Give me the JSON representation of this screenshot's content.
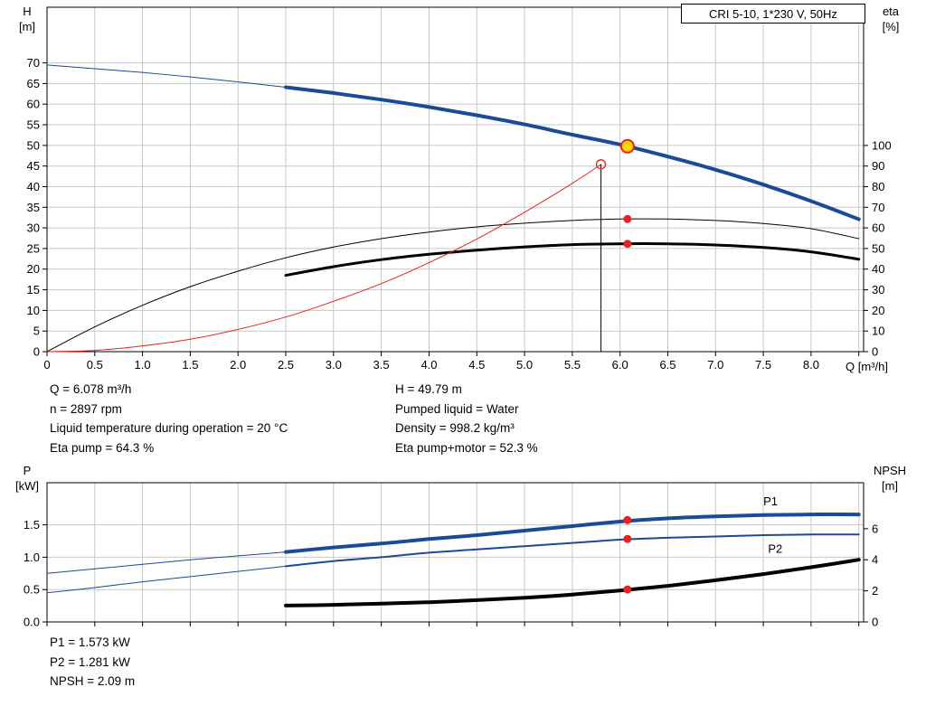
{
  "colors": {
    "blue": "#1b4a97",
    "black": "#000000",
    "red": "#e8231e",
    "yellow": "#ffd800",
    "grid": "#c8c8c8",
    "frame": "#000000"
  },
  "info_top": {
    "left": [
      "Q = 6.078 m³/h",
      "n = 2897 rpm",
      "Liquid temperature during operation = 20 °C",
      "Eta pump = 64.3 %"
    ],
    "right": [
      "H = 49.79 m",
      "Pumped liquid = Water",
      "Density = 998.2 kg/m³",
      "Eta pump+motor = 52.3 %"
    ]
  },
  "info_bottom": [
    "P1 = 1.573 kW",
    "P2 = 1.281 kW",
    "NPSH = 2.09 m"
  ],
  "chart_data": [
    {
      "type": "line",
      "name": "qh-eta-chart",
      "title": "CRI 5-10, 1*230 V, 50Hz",
      "x_axis": {
        "label": "Q [m³/h]",
        "min": 0,
        "max": 8.55,
        "grid_step": 0.5,
        "ticks": [
          [
            0,
            "0"
          ],
          [
            0.5,
            "0.5"
          ],
          [
            1,
            "1.0"
          ],
          [
            1.5,
            "1.5"
          ],
          [
            2,
            "2.0"
          ],
          [
            2.5,
            "2.5"
          ],
          [
            3,
            "3.0"
          ],
          [
            3.5,
            "3.5"
          ],
          [
            4,
            "4.0"
          ],
          [
            4.5,
            "4.5"
          ],
          [
            5,
            "5.0"
          ],
          [
            5.5,
            "5.5"
          ],
          [
            6,
            "6.0"
          ],
          [
            6.5,
            "6.5"
          ],
          [
            7,
            "7.0"
          ],
          [
            7.5,
            "7.5"
          ],
          [
            8,
            "8.0"
          ]
        ]
      },
      "y_left": {
        "label": "H",
        "unit": "[m]",
        "min": 0,
        "max": 83.5,
        "ticks": [
          [
            0,
            "0"
          ],
          [
            5,
            "5"
          ],
          [
            10,
            "10"
          ],
          [
            15,
            "15"
          ],
          [
            20,
            "20"
          ],
          [
            25,
            "25"
          ],
          [
            30,
            "30"
          ],
          [
            35,
            "35"
          ],
          [
            40,
            "40"
          ],
          [
            45,
            "45"
          ],
          [
            50,
            "50"
          ],
          [
            55,
            "55"
          ],
          [
            60,
            "60"
          ],
          [
            65,
            "65"
          ],
          [
            70,
            "70"
          ]
        ]
      },
      "y_right": {
        "label": "eta",
        "unit": "[%]",
        "left_units_per_right_unit": 0.5,
        "ticks": [
          [
            0,
            "0"
          ],
          [
            10,
            "10"
          ],
          [
            20,
            "20"
          ],
          [
            30,
            "30"
          ],
          [
            40,
            "40"
          ],
          [
            50,
            "50"
          ],
          [
            60,
            "60"
          ],
          [
            70,
            "70"
          ],
          [
            80,
            "80"
          ],
          [
            90,
            "90"
          ],
          [
            100,
            "100"
          ]
        ]
      },
      "series": [
        {
          "name": "qh-curve-low-flow",
          "color": "blue",
          "width": 1,
          "axis": "left",
          "points": [
            [
              0,
              69.5
            ],
            [
              0.5,
              68.6
            ],
            [
              1,
              67.7
            ],
            [
              1.5,
              66.6
            ],
            [
              2,
              65.4
            ],
            [
              2.5,
              64.1
            ]
          ]
        },
        {
          "name": "qh-curve",
          "color": "blue",
          "width": 4,
          "axis": "left",
          "points": [
            [
              2.5,
              64.1
            ],
            [
              3,
              62.7
            ],
            [
              3.5,
              61.1
            ],
            [
              4,
              59.3
            ],
            [
              4.5,
              57.3
            ],
            [
              5,
              55.1
            ],
            [
              5.5,
              52.6
            ],
            [
              6,
              50.2
            ],
            [
              6.5,
              47.3
            ],
            [
              7,
              44.1
            ],
            [
              7.5,
              40.5
            ],
            [
              8,
              36.5
            ],
            [
              8.5,
              32.1
            ]
          ]
        },
        {
          "name": "eta-pump-curve",
          "color": "black",
          "width": 1,
          "axis": "right",
          "points": [
            [
              0,
              0
            ],
            [
              0.5,
              12
            ],
            [
              1,
              22.5
            ],
            [
              1.5,
              31.5
            ],
            [
              2,
              39
            ],
            [
              2.5,
              45.5
            ],
            [
              3,
              50.7
            ],
            [
              3.5,
              54.8
            ],
            [
              4,
              58
            ],
            [
              4.5,
              60.5
            ],
            [
              5,
              62.3
            ],
            [
              5.5,
              63.6
            ],
            [
              6,
              64.3
            ],
            [
              6.5,
              64.3
            ],
            [
              7,
              63.6
            ],
            [
              7.5,
              62.1
            ],
            [
              8,
              59.6
            ],
            [
              8.5,
              54.8
            ]
          ]
        },
        {
          "name": "eta-pump-motor-curve",
          "color": "black",
          "width": 3,
          "axis": "right",
          "points": [
            [
              2.5,
              37
            ],
            [
              3,
              41.2
            ],
            [
              3.5,
              44.6
            ],
            [
              4,
              47.2
            ],
            [
              4.5,
              49.2
            ],
            [
              5,
              50.8
            ],
            [
              5.5,
              51.9
            ],
            [
              6,
              52.3
            ],
            [
              6.5,
              52.3
            ],
            [
              7,
              51.7
            ],
            [
              7.5,
              50.5
            ],
            [
              8,
              48.4
            ],
            [
              8.5,
              44.8
            ]
          ]
        },
        {
          "name": "system-curve",
          "color": "red",
          "width": 1,
          "axis": "left",
          "points": [
            [
              0,
              0
            ],
            [
              0.5,
              0.3
            ],
            [
              1,
              1.4
            ],
            [
              1.5,
              3
            ],
            [
              2,
              5.4
            ],
            [
              2.5,
              8.4
            ],
            [
              3,
              12.2
            ],
            [
              3.5,
              16.5
            ],
            [
              4,
              21.6
            ],
            [
              4.5,
              27.3
            ],
            [
              5,
              33.8
            ],
            [
              5.5,
              40.8
            ],
            [
              5.8,
              45.4
            ]
          ]
        }
      ],
      "vline": {
        "x": 5.8,
        "y_top": 45.4
      },
      "markers": [
        {
          "name": "rated-point",
          "style": "red-open",
          "x": 5.8,
          "y": 45.4,
          "axis": "left"
        },
        {
          "name": "duty-point",
          "style": "yellow-red-ring",
          "x": 6.078,
          "y": 49.79,
          "axis": "left"
        },
        {
          "name": "eta-pump-duty",
          "style": "red-dot",
          "x": 6.078,
          "y": 64.3,
          "axis": "right"
        },
        {
          "name": "eta-pump-motor-duty",
          "style": "red-dot",
          "x": 6.078,
          "y": 52.3,
          "axis": "right"
        }
      ],
      "series_labels": []
    },
    {
      "type": "line",
      "name": "power-npsh-chart",
      "title": "",
      "x_axis": {
        "label": "",
        "min": 0,
        "max": 8.55,
        "grid_step": 0.5,
        "ticks": []
      },
      "y_left": {
        "label": "P",
        "unit": "[kW]",
        "min": 0,
        "max": 2.15,
        "ticks": [
          [
            0,
            "0.0"
          ],
          [
            0.5,
            "0.5"
          ],
          [
            1,
            "1.0"
          ],
          [
            1.5,
            "1.5"
          ]
        ]
      },
      "y_right": {
        "label": "NPSH",
        "unit": "[m]",
        "left_units_per_right_unit": 0.24,
        "ticks": [
          [
            0,
            "0"
          ],
          [
            2,
            "2"
          ],
          [
            4,
            "4"
          ],
          [
            6,
            "6"
          ]
        ]
      },
      "series": [
        {
          "name": "p1-curve-low-flow",
          "color": "blue",
          "width": 1,
          "axis": "left",
          "points": [
            [
              0,
              0.75
            ],
            [
              0.5,
              0.82
            ],
            [
              1,
              0.89
            ],
            [
              1.5,
              0.96
            ],
            [
              2,
              1.02
            ],
            [
              2.5,
              1.08
            ]
          ]
        },
        {
          "name": "p1-curve",
          "color": "blue",
          "width": 4,
          "axis": "left",
          "points": [
            [
              2.5,
              1.08
            ],
            [
              3,
              1.15
            ],
            [
              3.5,
              1.21
            ],
            [
              4,
              1.28
            ],
            [
              4.5,
              1.34
            ],
            [
              5,
              1.41
            ],
            [
              5.5,
              1.48
            ],
            [
              6,
              1.55
            ],
            [
              6.5,
              1.6
            ],
            [
              7,
              1.63
            ],
            [
              7.5,
              1.65
            ],
            [
              8,
              1.66
            ],
            [
              8.5,
              1.66
            ]
          ]
        },
        {
          "name": "p2-curve-low-flow",
          "color": "blue",
          "width": 1,
          "axis": "left",
          "points": [
            [
              0,
              0.45
            ],
            [
              0.5,
              0.53
            ],
            [
              1,
              0.62
            ],
            [
              1.5,
              0.7
            ],
            [
              2,
              0.78
            ],
            [
              2.5,
              0.86
            ]
          ]
        },
        {
          "name": "p2-curve",
          "color": "blue",
          "width": 2,
          "axis": "left",
          "points": [
            [
              2.5,
              0.86
            ],
            [
              3,
              0.94
            ],
            [
              3.5,
              1
            ],
            [
              4,
              1.07
            ],
            [
              4.5,
              1.12
            ],
            [
              5,
              1.17
            ],
            [
              5.5,
              1.22
            ],
            [
              6,
              1.27
            ],
            [
              6.5,
              1.3
            ],
            [
              7,
              1.32
            ],
            [
              7.5,
              1.34
            ],
            [
              8,
              1.35
            ],
            [
              8.5,
              1.35
            ]
          ]
        },
        {
          "name": "npsh-curve",
          "color": "black",
          "width": 4,
          "axis": "right",
          "points": [
            [
              2.5,
              1.05
            ],
            [
              3,
              1.1
            ],
            [
              3.5,
              1.18
            ],
            [
              4,
              1.27
            ],
            [
              4.5,
              1.4
            ],
            [
              5,
              1.56
            ],
            [
              5.5,
              1.76
            ],
            [
              6,
              2.02
            ],
            [
              6.5,
              2.32
            ],
            [
              7,
              2.68
            ],
            [
              7.5,
              3.08
            ],
            [
              8,
              3.52
            ],
            [
              8.5,
              4
            ]
          ]
        }
      ],
      "markers": [
        {
          "name": "p1-duty",
          "style": "red-dot",
          "x": 6.078,
          "y": 1.573,
          "axis": "left"
        },
        {
          "name": "p2-duty",
          "style": "red-dot",
          "x": 6.078,
          "y": 1.281,
          "axis": "left"
        },
        {
          "name": "npsh-duty",
          "style": "red-dot",
          "x": 6.078,
          "y": 2.09,
          "axis": "right"
        }
      ],
      "series_labels": [
        {
          "text": "P1",
          "x": 7.5,
          "y": 1.8,
          "color": "blue"
        },
        {
          "text": "P2",
          "x": 7.55,
          "y": 1.07,
          "color": "blue"
        }
      ]
    }
  ]
}
